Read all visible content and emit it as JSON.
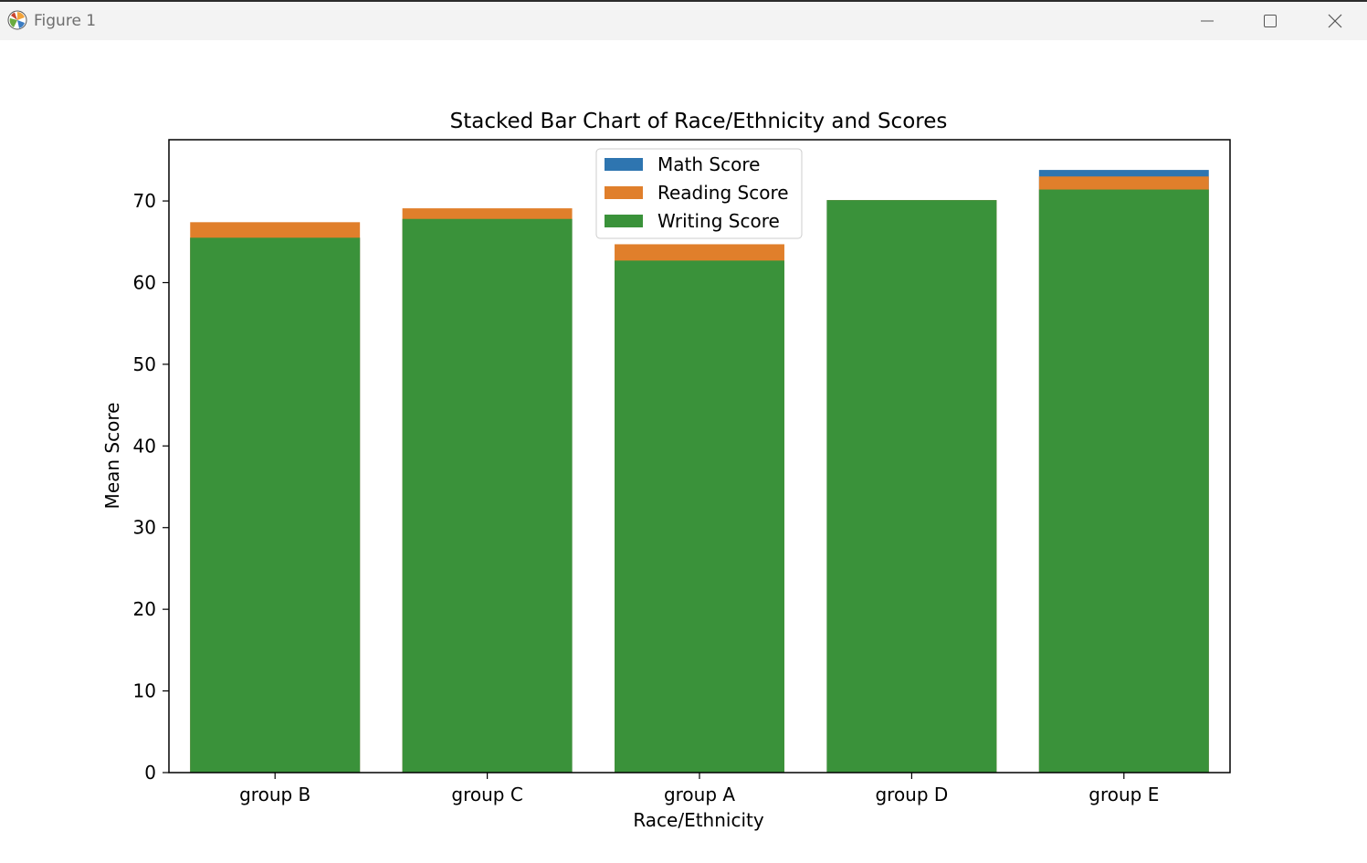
{
  "window": {
    "title": "Figure 1",
    "controls": {
      "minimize": "minimize-icon",
      "maximize": "maximize-icon",
      "close": "close-icon"
    }
  },
  "chart_data": {
    "type": "bar",
    "stacked": true,
    "title": "Stacked Bar Chart of Race/Ethnicity and Scores",
    "xlabel": "Race/Ethnicity",
    "ylabel": "Mean Score",
    "categories": [
      "group B",
      "group C",
      "group A",
      "group D",
      "group E"
    ],
    "series": [
      {
        "name": "Math Score",
        "color": "#2e75b0",
        "top": [
          65.5,
          67.8,
          62.7,
          70.1,
          73.8
        ]
      },
      {
        "name": "Reading Score",
        "color": "#e07f2b",
        "top": [
          67.4,
          69.1,
          64.7,
          70.1,
          73.0
        ]
      },
      {
        "name": "Writing Score",
        "color": "#3a923a",
        "top": [
          65.5,
          67.8,
          62.7,
          70.1,
          71.4
        ]
      }
    ],
    "ylim": [
      0,
      77.5
    ],
    "yticks": [
      0,
      10,
      20,
      30,
      40,
      50,
      60,
      70
    ],
    "grid": false,
    "legend": "top-center"
  }
}
